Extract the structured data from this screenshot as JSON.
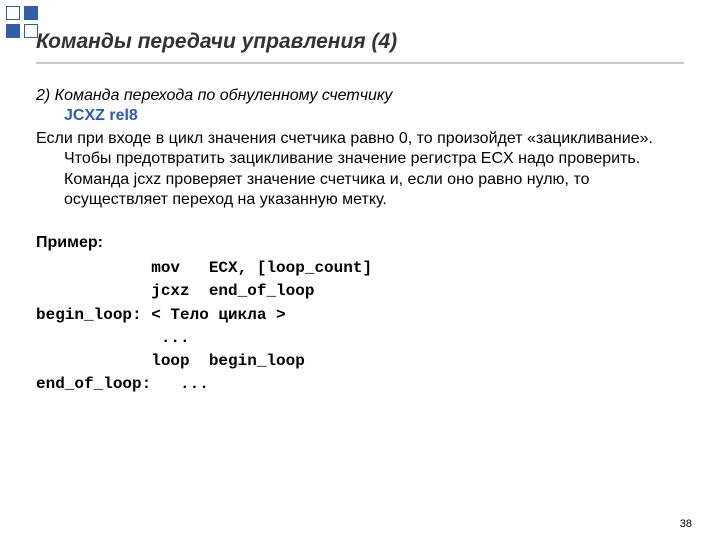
{
  "title": "Команды передачи управления (4)",
  "line_intro": "2) Команда перехода по обнуленному счетчику",
  "cmd_line": "JCXZ  rel8",
  "paragraph": "Если при входе в цикл значения счетчика равно 0, то произойдет «зацикливание». Чтобы предотвратить зацикливание значение регистра ECX надо проверить. Команда jcxz проверяет значение счетчика и, если оно равно нулю, то осуществляет переход на указанную метку.",
  "example_label": "Пример:",
  "code_text": "            mov   ECX, [loop_count]\n            jcxz  end_of_loop\nbegin_loop: < Тело цикла >\n             ...\n            loop  begin_loop\nend_of_loop:   ...",
  "page_number": "38",
  "colors": {
    "accent": "#325ea8",
    "cmd_color": "#2a5db0",
    "underline": "#c9c9c9",
    "text": "#000000",
    "title": "#333333",
    "background": "#ffffff"
  }
}
